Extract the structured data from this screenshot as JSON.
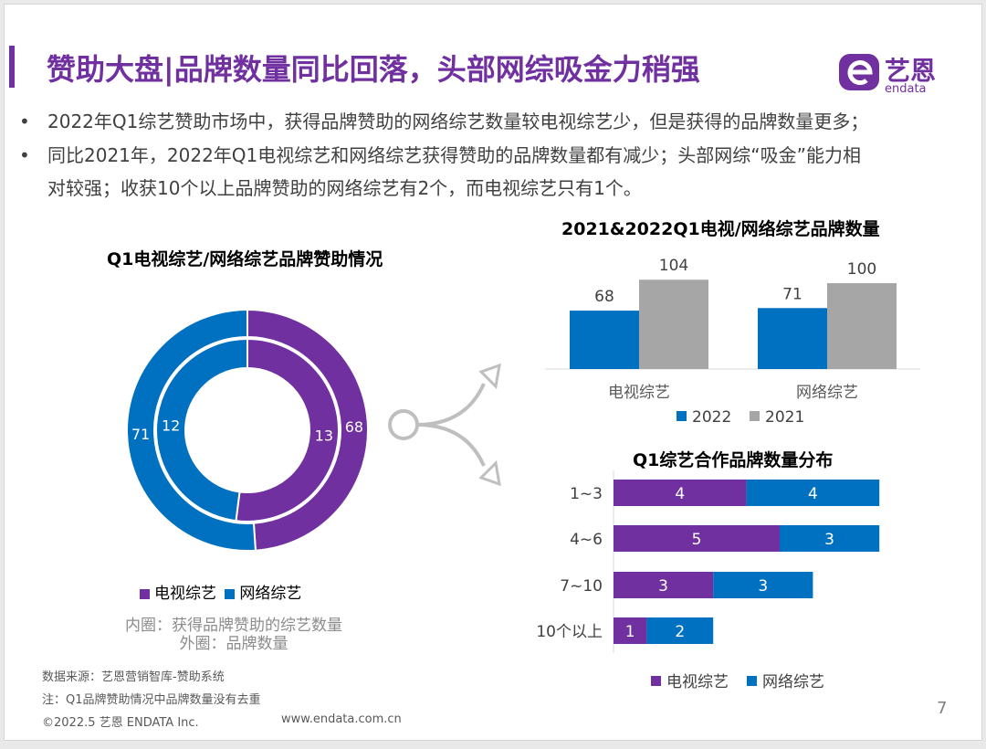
{
  "header": {
    "title": "赞助大盘|品牌数量同比回落，头部网综吸金力稍强",
    "logo_text": "艺恩",
    "logo_sub": "endata"
  },
  "bullets": [
    {
      "lines": [
        "2022年Q1综艺赞助市场中，获得品牌赞助的网络综艺数量较电视综艺少，但是获得的品牌数量更多；"
      ]
    },
    {
      "lines": [
        "同比2021年，2022年Q1电视综艺和网络综艺获得赞助的品牌数量都有减少；头部网综“吸金”能力相",
        "对较强；收获10个以上品牌赞助的网络综艺有2个，而电视综艺只有1个。"
      ]
    }
  ],
  "colors": {
    "tv": "#7030A0",
    "net": "#0070C0",
    "y2021": "#A6A6A6",
    "title": "#7030A0"
  },
  "chart_data": [
    {
      "type": "pie",
      "title": "Q1电视综艺/网络综艺品牌赞助情况",
      "series": [
        {
          "name": "外圈：品牌数量",
          "labels": [
            "电视综艺",
            "网络综艺"
          ],
          "values": [
            68,
            71
          ]
        },
        {
          "name": "内圈：获得品牌赞助的综艺数量",
          "labels": [
            "电视综艺",
            "网络综艺"
          ],
          "values": [
            13,
            12
          ]
        }
      ],
      "legend": [
        "电视综艺",
        "网络综艺"
      ],
      "legend_position": "bottom",
      "notes": [
        "内圈：获得品牌赞助的综艺数量",
        "外圈：品牌数量"
      ]
    },
    {
      "type": "bar",
      "title": "2021&2022Q1电视/网络综艺品牌数量",
      "categories": [
        "电视综艺",
        "网络综艺"
      ],
      "series": [
        {
          "name": "2022",
          "values": [
            68,
            71
          ]
        },
        {
          "name": "2021",
          "values": [
            104,
            100
          ]
        }
      ],
      "legend_position": "bottom",
      "grid": false
    },
    {
      "type": "bar",
      "orientation": "horizontal",
      "stacked": true,
      "title": "Q1综艺合作品牌数量分布",
      "categories": [
        "1~3",
        "4~6",
        "7~10",
        "10个以上"
      ],
      "series": [
        {
          "name": "电视综艺",
          "values": [
            4,
            5,
            3,
            1
          ]
        },
        {
          "name": "网络综艺",
          "values": [
            4,
            3,
            3,
            2
          ]
        }
      ],
      "legend_position": "bottom",
      "grid": false
    }
  ],
  "footer": {
    "source": "数据来源：艺恩营销智库-赞助系统",
    "note": "注：Q1品牌赞助情况中品牌数量没有去重",
    "copyright": "©2022.5 艺恩 ENDATA Inc.",
    "url": "www.endata.com.cn",
    "page": "7"
  }
}
